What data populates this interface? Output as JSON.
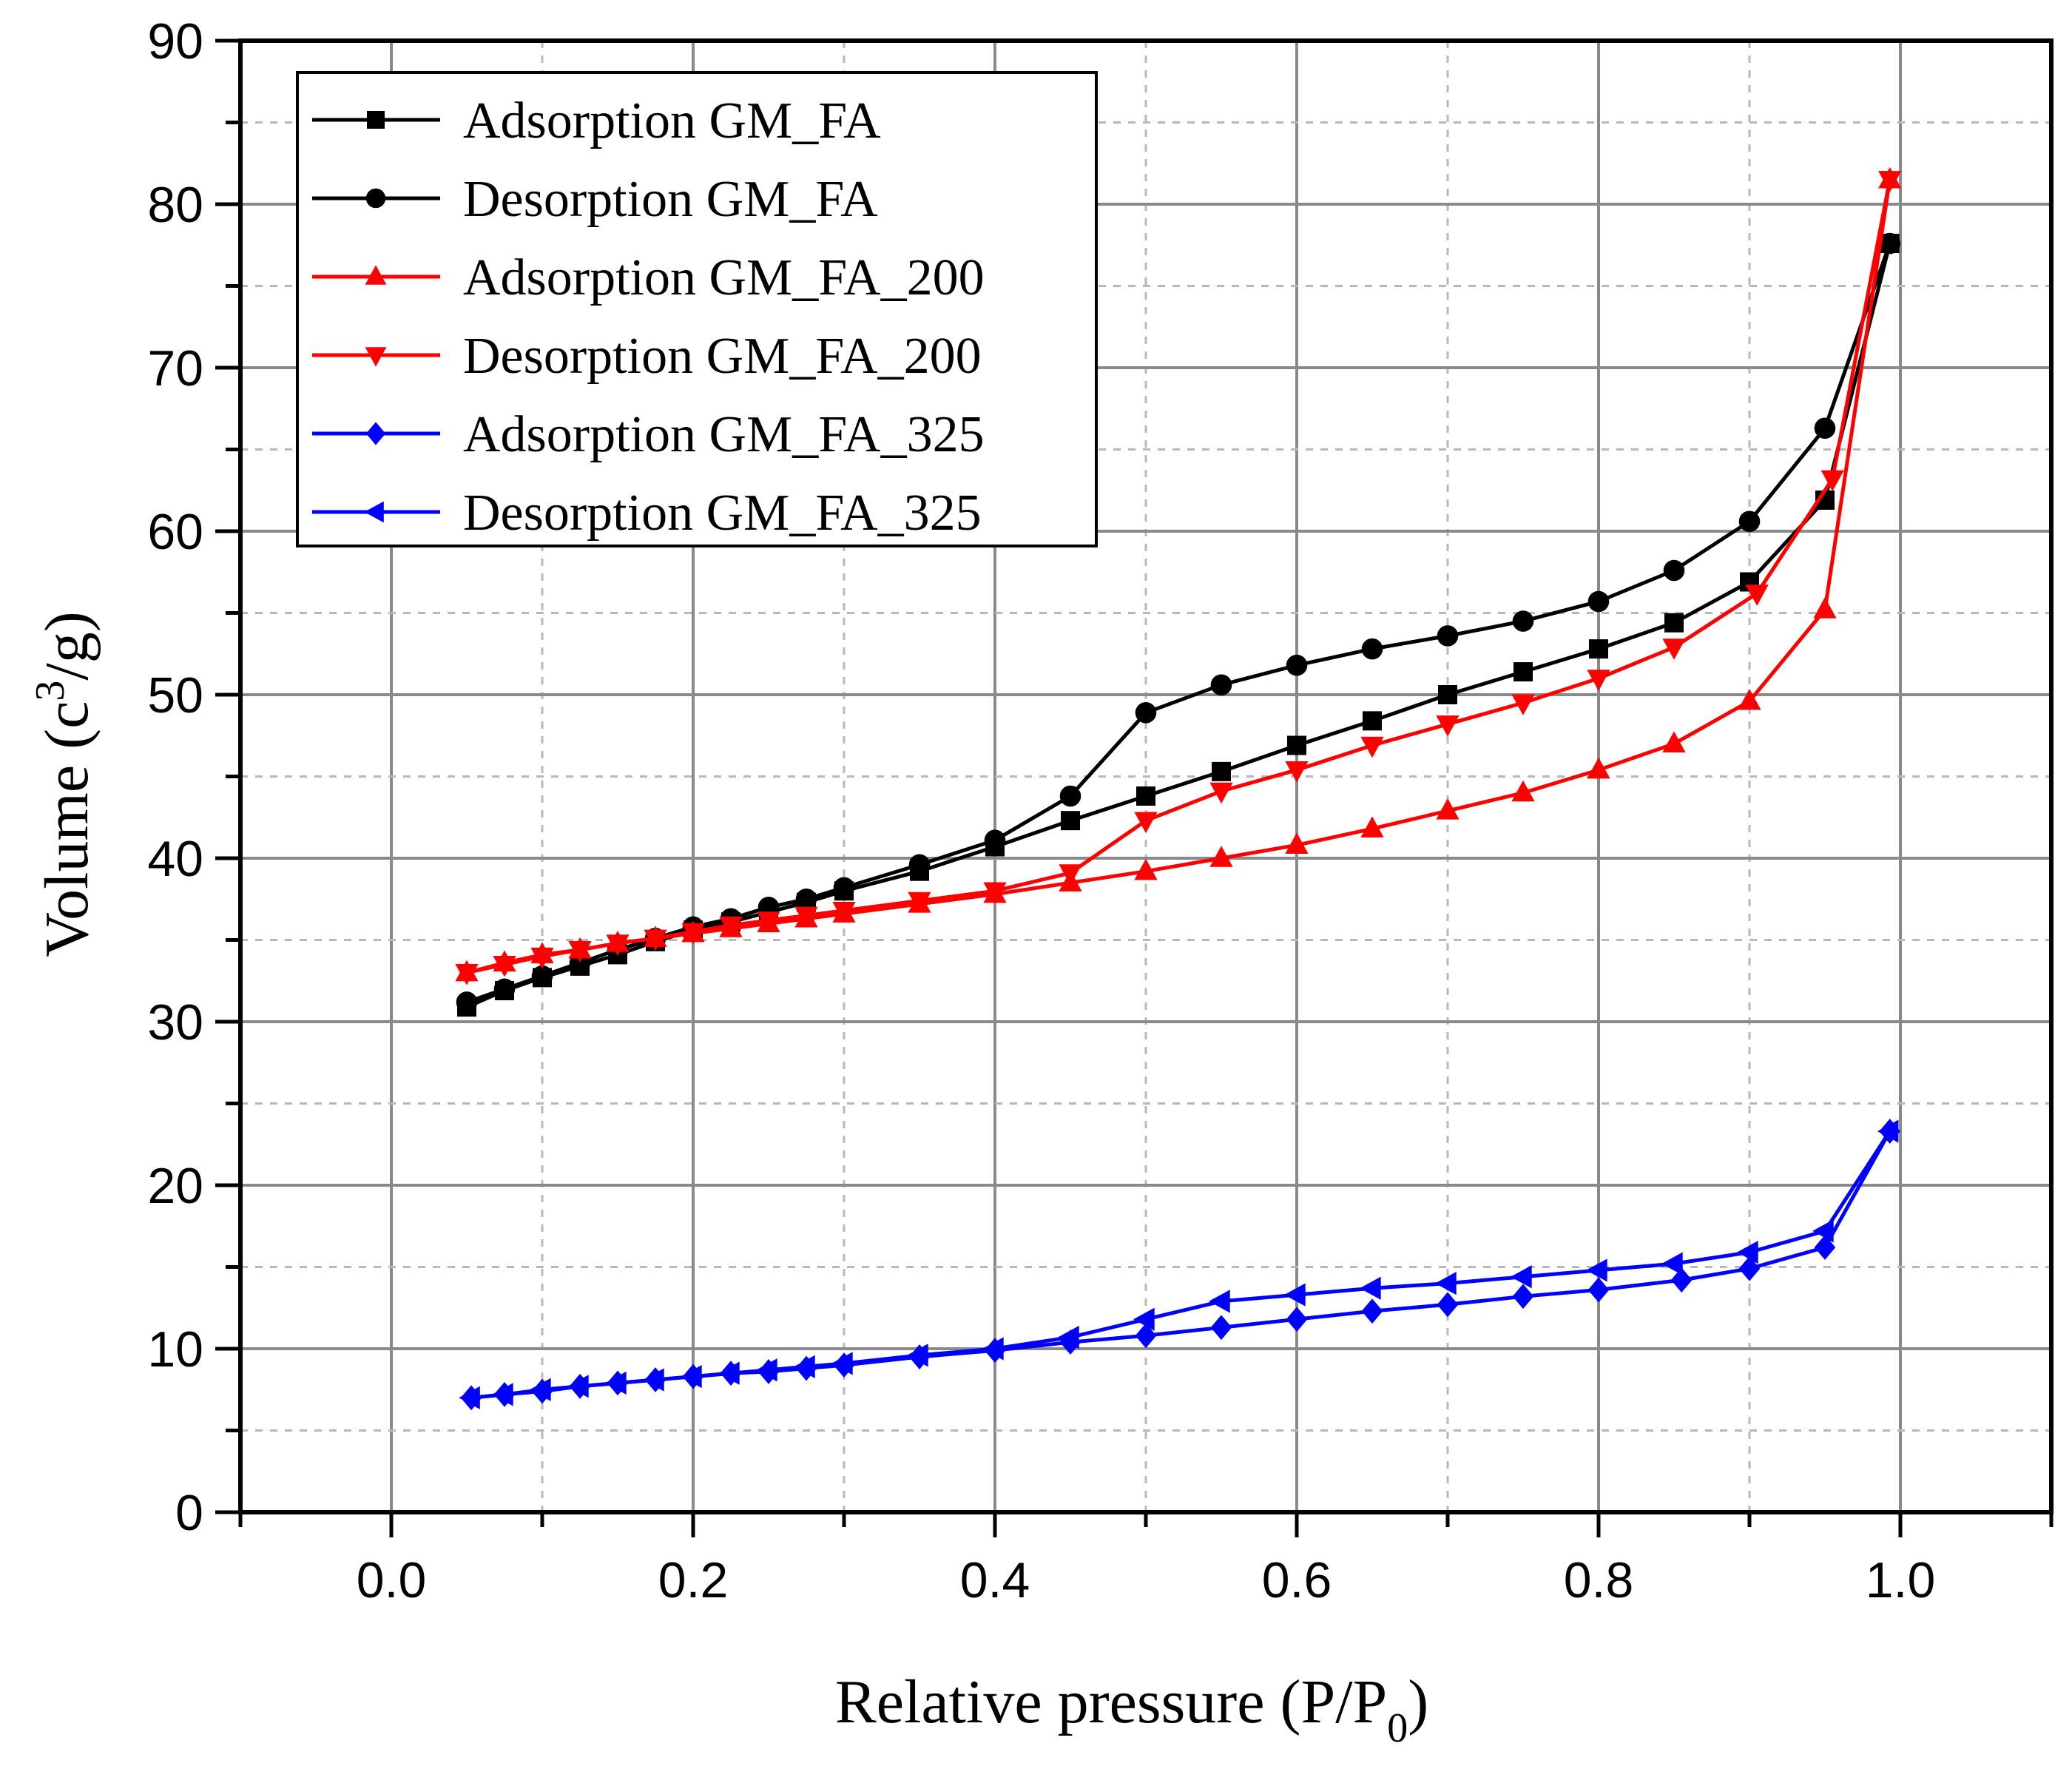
{
  "chart_data": {
    "type": "line",
    "title": "",
    "xlabel_main": "Relative pressure (P/P",
    "xlabel_sub": "0",
    "xlabel_tail": ")",
    "ylabel_main": "Volume (c",
    "ylabel_sup": "3",
    "ylabel_tail": "/g)",
    "xlim": [
      -0.1,
      1.1
    ],
    "ylim": [
      0,
      90
    ],
    "x_ticks": [
      0.0,
      0.2,
      0.4,
      0.6,
      0.8,
      1.0
    ],
    "x_tick_labels": [
      "0.0",
      "0.2",
      "0.4",
      "0.6",
      "0.8",
      "1.0"
    ],
    "y_ticks": [
      0,
      10,
      20,
      30,
      40,
      50,
      60,
      70,
      80,
      90
    ],
    "y_tick_labels": [
      "0",
      "10",
      "20",
      "30",
      "40",
      "50",
      "60",
      "70",
      "80",
      "90"
    ],
    "grid": true,
    "legend_position": "top-left",
    "series": [
      {
        "name": "Adsorption GM_FA",
        "color": "#000000",
        "marker": "square",
        "x": [
          0.05,
          0.075,
          0.1,
          0.125,
          0.15,
          0.175,
          0.2,
          0.225,
          0.25,
          0.275,
          0.3,
          0.35,
          0.4,
          0.45,
          0.5,
          0.55,
          0.6,
          0.65,
          0.7,
          0.75,
          0.8,
          0.85,
          0.9,
          0.95,
          0.993
        ],
        "y": [
          30.9,
          31.9,
          32.7,
          33.4,
          34.1,
          34.9,
          35.6,
          36.1,
          36.7,
          37.3,
          38.0,
          39.2,
          40.7,
          42.3,
          43.8,
          45.3,
          46.9,
          48.4,
          50.0,
          51.4,
          52.8,
          54.4,
          56.9,
          61.9,
          77.6
        ]
      },
      {
        "name": "Desorption GM_FA",
        "color": "#000000",
        "marker": "circle",
        "x": [
          0.993,
          0.95,
          0.9,
          0.85,
          0.8,
          0.75,
          0.7,
          0.65,
          0.6,
          0.55,
          0.5,
          0.45,
          0.4,
          0.35,
          0.3,
          0.275,
          0.25,
          0.225,
          0.2,
          0.175,
          0.15,
          0.125,
          0.1,
          0.075,
          0.05
        ],
        "y": [
          77.6,
          66.3,
          60.6,
          57.6,
          55.7,
          54.5,
          53.6,
          52.8,
          51.8,
          50.6,
          48.9,
          43.8,
          41.1,
          39.6,
          38.2,
          37.5,
          37.0,
          36.3,
          35.8,
          35.1,
          34.4,
          33.6,
          32.8,
          32.0,
          31.2
        ]
      },
      {
        "name": "Adsorption GM_FA_200",
        "color": "#ff0000",
        "marker": "triangle-up",
        "x": [
          0.05,
          0.075,
          0.1,
          0.125,
          0.15,
          0.175,
          0.2,
          0.225,
          0.25,
          0.275,
          0.3,
          0.35,
          0.4,
          0.45,
          0.5,
          0.55,
          0.6,
          0.65,
          0.7,
          0.75,
          0.8,
          0.85,
          0.9,
          0.95,
          0.993
        ],
        "y": [
          33.0,
          33.6,
          34.1,
          34.4,
          34.8,
          35.1,
          35.4,
          35.7,
          36.0,
          36.3,
          36.6,
          37.2,
          37.8,
          38.5,
          39.2,
          40.0,
          40.8,
          41.8,
          42.9,
          44.0,
          45.4,
          47.0,
          49.6,
          55.2,
          81.5
        ]
      },
      {
        "name": "Desorption GM_FA_200",
        "color": "#ff0000",
        "marker": "triangle-down",
        "x": [
          0.993,
          0.955,
          0.905,
          0.85,
          0.8,
          0.75,
          0.7,
          0.65,
          0.6,
          0.55,
          0.5,
          0.45,
          0.4,
          0.35,
          0.3,
          0.275,
          0.25,
          0.225,
          0.2,
          0.175,
          0.15,
          0.125,
          0.1,
          0.075,
          0.05
        ],
        "y": [
          81.5,
          63.2,
          56.2,
          52.9,
          51.0,
          49.5,
          48.2,
          46.9,
          45.4,
          44.1,
          42.3,
          39.1,
          38.0,
          37.4,
          36.8,
          36.5,
          36.2,
          35.9,
          35.5,
          35.1,
          34.8,
          34.4,
          34.0,
          33.5,
          33.0
        ]
      },
      {
        "name": "Adsorption GM_FA_325",
        "color": "#0000ff",
        "marker": "diamond",
        "x": [
          0.053,
          0.075,
          0.1,
          0.125,
          0.15,
          0.175,
          0.2,
          0.225,
          0.25,
          0.275,
          0.3,
          0.35,
          0.4,
          0.45,
          0.5,
          0.55,
          0.6,
          0.65,
          0.7,
          0.75,
          0.8,
          0.855,
          0.9,
          0.95,
          0.993
        ],
        "y": [
          7.0,
          7.2,
          7.4,
          7.7,
          7.9,
          8.1,
          8.3,
          8.5,
          8.6,
          8.8,
          9.0,
          9.5,
          9.9,
          10.4,
          10.8,
          11.3,
          11.8,
          12.3,
          12.7,
          13.2,
          13.6,
          14.2,
          14.9,
          16.2,
          23.3
        ]
      },
      {
        "name": "Desorption GM_FA_325",
        "color": "#0000ff",
        "marker": "triangle-left",
        "x": [
          0.993,
          0.95,
          0.9,
          0.85,
          0.8,
          0.75,
          0.7,
          0.65,
          0.6,
          0.55,
          0.5,
          0.45,
          0.4,
          0.35,
          0.3,
          0.275,
          0.25,
          0.225,
          0.2,
          0.175,
          0.15,
          0.125,
          0.1,
          0.075,
          0.053
        ],
        "y": [
          23.3,
          17.2,
          15.9,
          15.2,
          14.8,
          14.4,
          14.0,
          13.7,
          13.3,
          12.9,
          11.8,
          10.7,
          10.0,
          9.6,
          9.1,
          8.9,
          8.7,
          8.5,
          8.3,
          8.1,
          7.9,
          7.7,
          7.5,
          7.2,
          7.0
        ]
      }
    ]
  }
}
